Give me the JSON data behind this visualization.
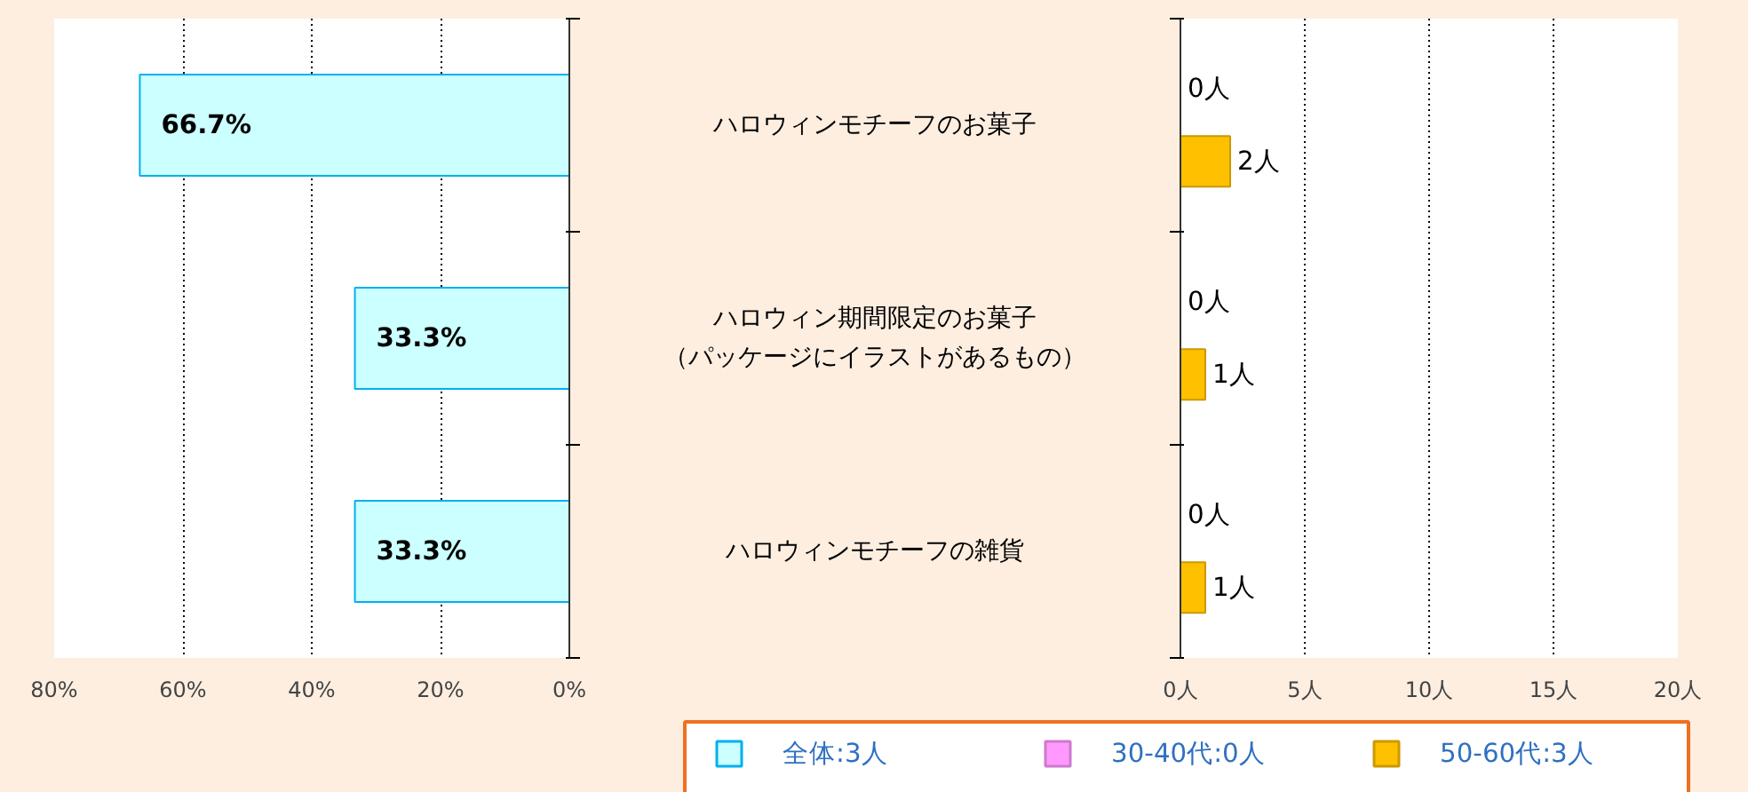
{
  "chart_data": [
    {
      "type": "bar",
      "orientation": "horizontal",
      "categories": [
        "ハロウィンモチーフのお菓子",
        "ハロウィン期間限定のお菓子（パッケージにイラストがあるもの）",
        "ハロウィンモチーフの雑貨"
      ],
      "series": [
        {
          "name": "全体:3人",
          "color": "#ccffff",
          "values": [
            66.7,
            33.3,
            33.3
          ],
          "value_labels": [
            "66.7%",
            "33.3%",
            "33.3%"
          ]
        }
      ],
      "xlim": [
        80,
        0
      ],
      "xticks": [
        {
          "value": 80,
          "label": "80%"
        },
        {
          "value": 60,
          "label": "60%"
        },
        {
          "value": 40,
          "label": "40%"
        },
        {
          "value": 20,
          "label": "20%"
        },
        {
          "value": 0,
          "label": "0%"
        }
      ],
      "grid": "x",
      "legend": "bottom"
    },
    {
      "type": "bar",
      "orientation": "horizontal",
      "categories": [
        null,
        null,
        null
      ],
      "series": [
        {
          "name": "30-40代:0人",
          "color": "#ff99ff",
          "values": [
            0,
            0,
            0
          ],
          "value_labels": [
            "0人",
            "0人",
            "0人"
          ]
        },
        {
          "name": "50-60代:3人",
          "color": "#ffc000",
          "values": [
            2,
            1,
            1
          ],
          "value_labels": [
            "2人",
            "1人",
            "1人"
          ]
        }
      ],
      "xlim": [
        0,
        20
      ],
      "xticks": [
        {
          "value": 0,
          "label": "0人"
        },
        {
          "value": 5,
          "label": "5人"
        },
        {
          "value": 10,
          "label": "10人"
        },
        {
          "value": 15,
          "label": "15人"
        },
        {
          "value": 20,
          "label": "20人"
        }
      ],
      "grid": "x",
      "legend": "bottom",
      "tick_labels": "x"
    }
  ]
}
